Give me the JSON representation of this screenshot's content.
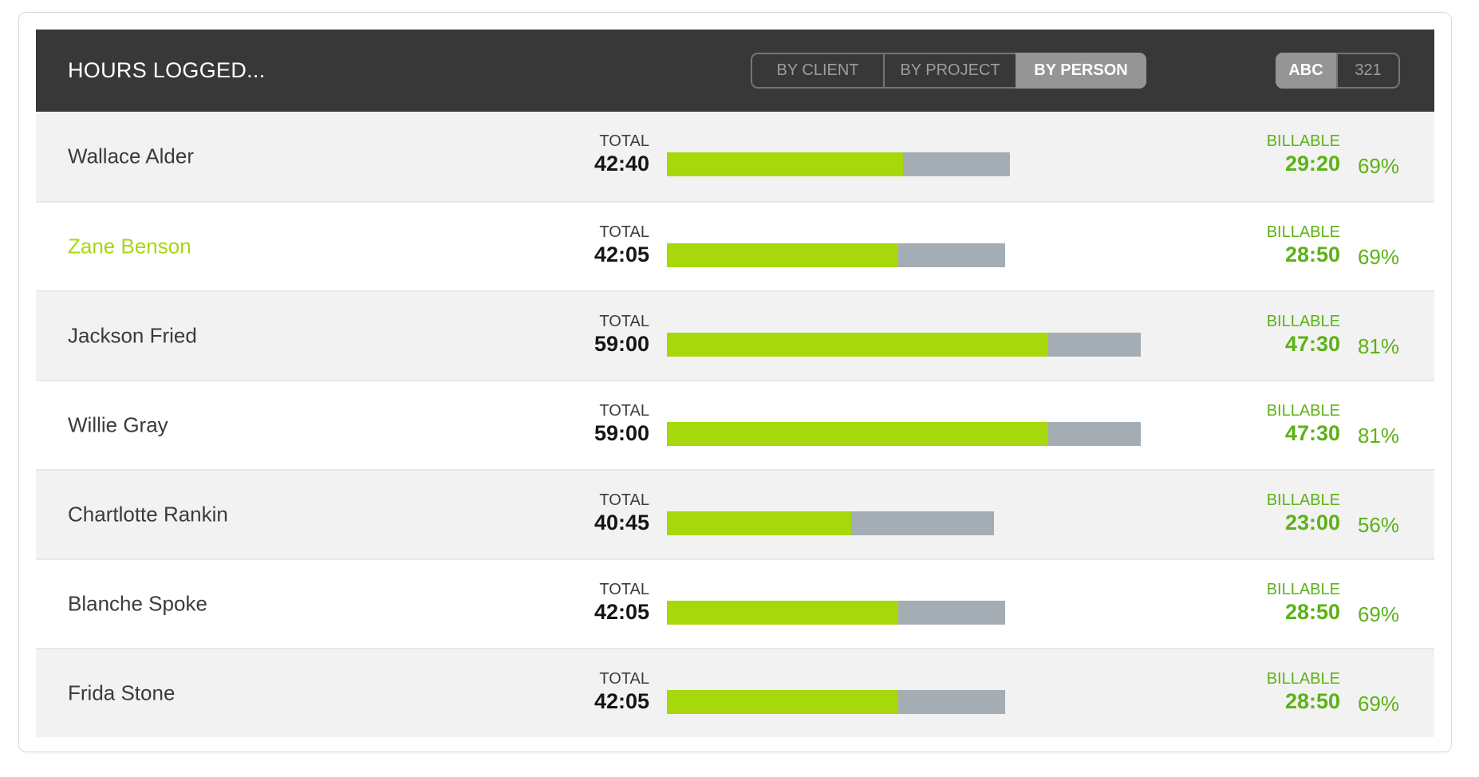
{
  "header": {
    "title": "HOURS LOGGED...",
    "view_toggle": {
      "options": [
        {
          "label": "BY CLIENT",
          "active": false
        },
        {
          "label": "BY PROJECT",
          "active": false
        },
        {
          "label": "BY PERSON",
          "active": true
        }
      ]
    },
    "sort_toggle": {
      "options": [
        {
          "label": "ABC",
          "active": true
        },
        {
          "label": "321",
          "active": false
        }
      ]
    }
  },
  "labels": {
    "total": "TOTAL",
    "billable": "BILLABLE"
  },
  "bar": {
    "max_hours": 59
  },
  "rows": [
    {
      "name": "Wallace Alder",
      "highlighted": false,
      "total": "42:40",
      "total_hours": 42.67,
      "billable": "29:20",
      "billable_pct": 68.8,
      "percent": "69%"
    },
    {
      "name": "Zane Benson",
      "highlighted": true,
      "total": "42:05",
      "total_hours": 42.08,
      "billable": "28:50",
      "billable_pct": 68.5,
      "percent": "69%"
    },
    {
      "name": "Jackson Fried",
      "highlighted": false,
      "total": "59:00",
      "total_hours": 59.0,
      "billable": "47:30",
      "billable_pct": 80.5,
      "percent": "81%"
    },
    {
      "name": "Willie Gray",
      "highlighted": false,
      "total": "59:00",
      "total_hours": 59.0,
      "billable": "47:30",
      "billable_pct": 80.5,
      "percent": "81%"
    },
    {
      "name": "Chartlotte Rankin",
      "highlighted": false,
      "total": "40:45",
      "total_hours": 40.75,
      "billable": "23:00",
      "billable_pct": 56.4,
      "percent": "56%"
    },
    {
      "name": "Blanche Spoke",
      "highlighted": false,
      "total": "42:05",
      "total_hours": 42.08,
      "billable": "28:50",
      "billable_pct": 68.5,
      "percent": "69%"
    },
    {
      "name": "Frida Stone",
      "highlighted": false,
      "total": "42:05",
      "total_hours": 42.08,
      "billable": "28:50",
      "billable_pct": 68.5,
      "percent": "69%"
    }
  ],
  "colors": {
    "header_bg": "#383838",
    "seg_border": "#757575",
    "seg_text": "#9d9d9d",
    "seg_active_bg": "#959595",
    "row_alt_bg": "#f2f2f2",
    "divider": "#e8e8e8",
    "green_bright": "#a6d80c",
    "green_text": "#5cb216",
    "bar_gray": "#a4adb4"
  }
}
